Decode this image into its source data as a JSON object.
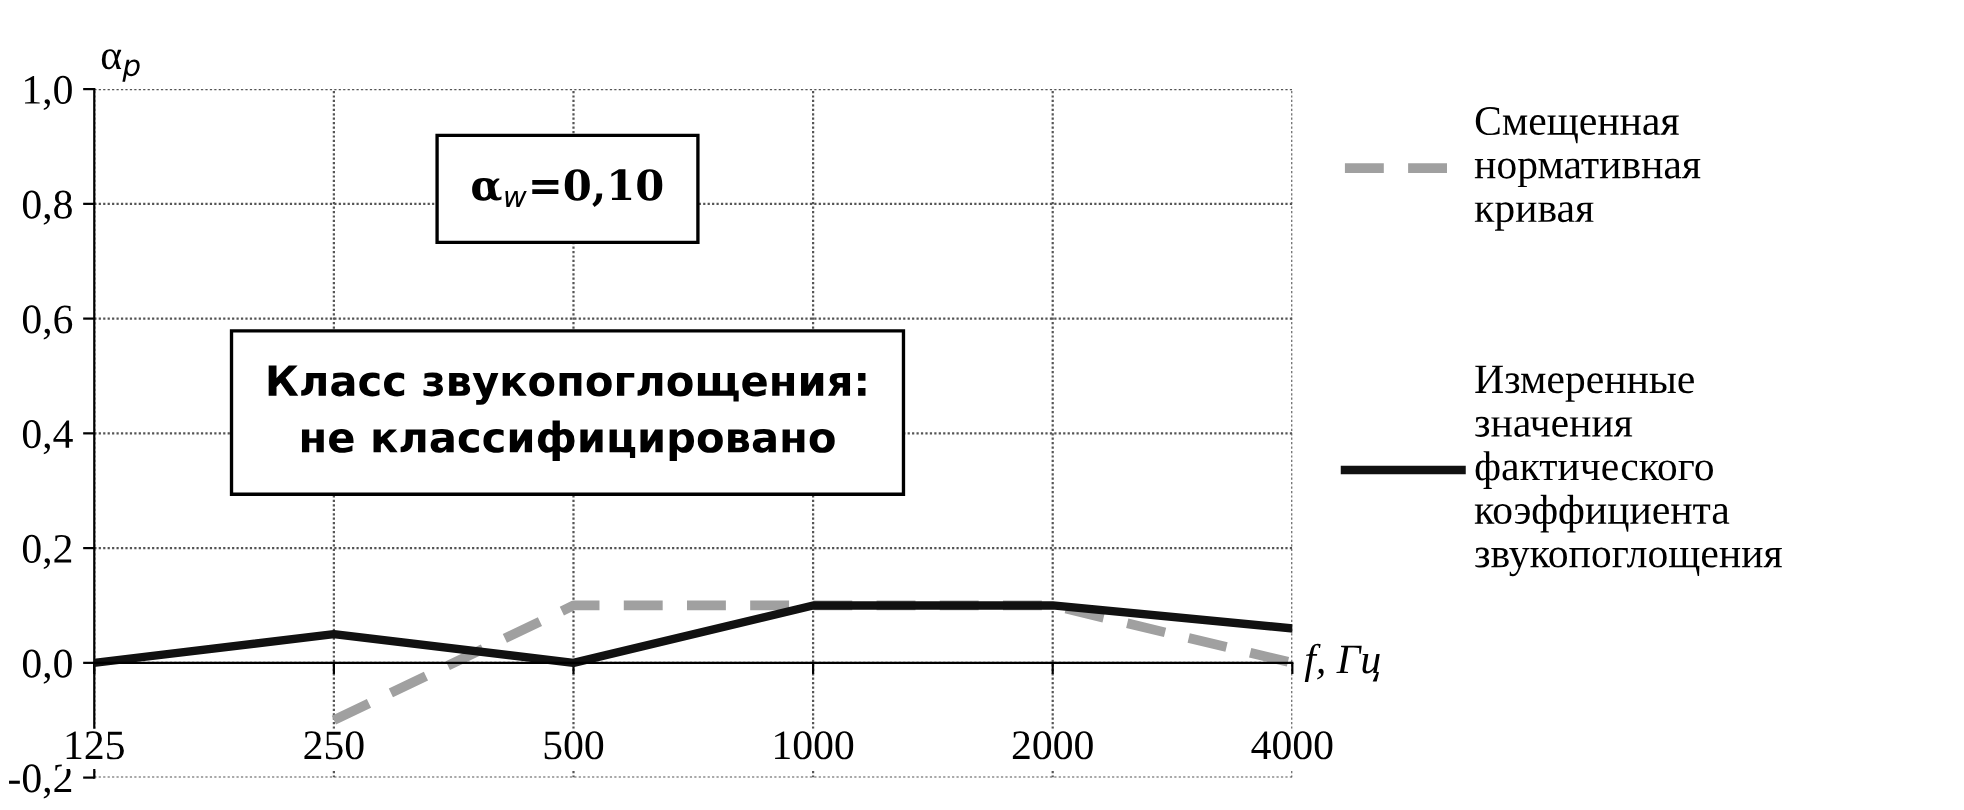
{
  "chart_data": {
    "type": "line",
    "categories": [
      "125",
      "250",
      "500",
      "1000",
      "2000",
      "4000"
    ],
    "series": [
      {
        "name": "Смещенная\nнормативная\nкривая",
        "color": "#a0a0a0",
        "line_style": "dashed",
        "values": [
          null,
          -0.1,
          0.1,
          0.1,
          0.1,
          0.0
        ]
      },
      {
        "name": "Измеренные\nзначения\nфактического\nкоэффициента\nзвукопоглощения",
        "color": "#111111",
        "line_style": "solid",
        "values": [
          0.0,
          0.05,
          0.0,
          0.1,
          0.1,
          0.06
        ]
      }
    ],
    "ylabel": "α$_{p}$",
    "xlabel": "f, Гц",
    "ylim": [
      -0.2,
      1.0
    ],
    "yticks": [
      {
        "value": -0.2,
        "label": "-0,2"
      },
      {
        "value": 0.0,
        "label": "0,0"
      },
      {
        "value": 0.2,
        "label": "0,2"
      },
      {
        "value": 0.4,
        "label": "0,4"
      },
      {
        "value": 0.6,
        "label": "0,6"
      },
      {
        "value": 0.8,
        "label": "0,8"
      },
      {
        "value": 1.0,
        "label": "1,0"
      }
    ],
    "grid": true,
    "legend": "right",
    "marker": "none",
    "annotations": [
      "α$_{w}$=0,10",
      "Класс звукопоглощения:\nне классифицировано"
    ]
  }
}
